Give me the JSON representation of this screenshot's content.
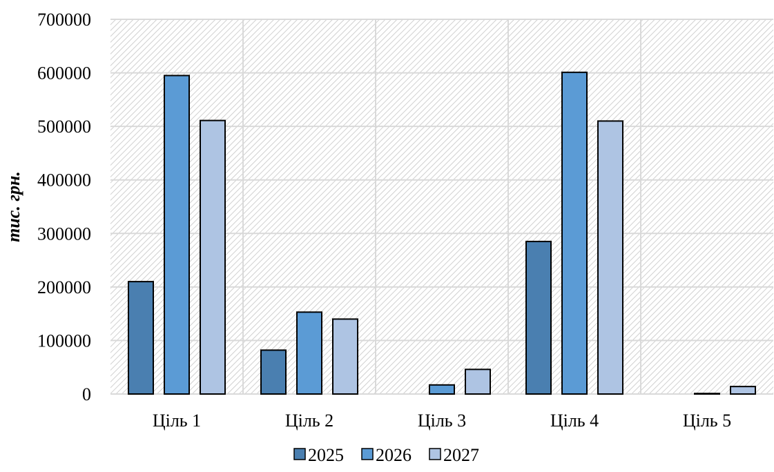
{
  "chart_data": {
    "type": "bar",
    "ylabel": "тис. грн.",
    "xlabel": "",
    "ylim": [
      0,
      700000
    ],
    "yticks": [
      0,
      100000,
      200000,
      300000,
      400000,
      500000,
      600000,
      700000
    ],
    "categories": [
      "Ціль 1",
      "Ціль 2",
      "Ціль 3",
      "Ціль 4",
      "Ціль 5"
    ],
    "series": [
      {
        "name": "2025",
        "color": "#4a7fb0",
        "values": [
          210000,
          82000,
          0,
          285000,
          0
        ]
      },
      {
        "name": "2026",
        "color": "#5b9bd5",
        "values": [
          595000,
          153000,
          17000,
          601000,
          1000
        ]
      },
      {
        "name": "2027",
        "color": "#aec4e3",
        "values": [
          511000,
          140000,
          46000,
          510000,
          14000
        ]
      }
    ],
    "grid": true,
    "legend": "bottom"
  }
}
